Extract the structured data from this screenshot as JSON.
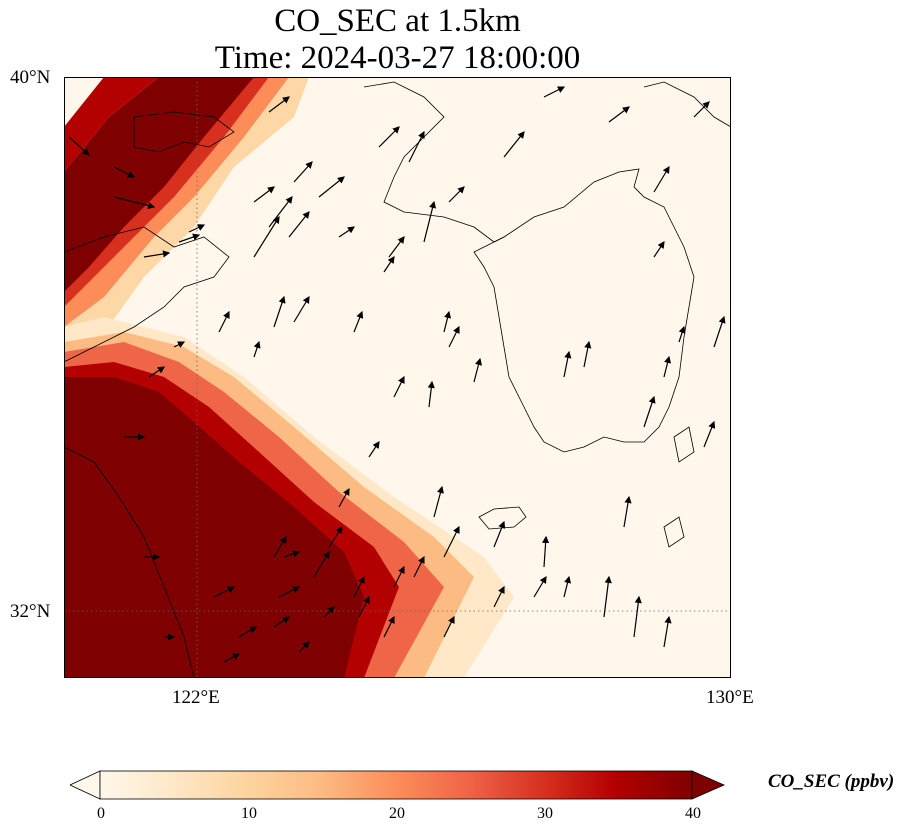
{
  "title": {
    "line1": "CO_SEC at 1.5km",
    "line2": "Time: 2024-03-27 18:00:00"
  },
  "map": {
    "lon_range": [
      120,
      130
    ],
    "lat_range": [
      31,
      40
    ],
    "lat_ticks": [
      {
        "value": 40,
        "label": "40°N"
      },
      {
        "value": 32,
        "label": "32°N"
      }
    ],
    "lon_ticks": [
      {
        "value": 122,
        "label": "122°E"
      },
      {
        "value": 130,
        "label": "130°E"
      }
    ],
    "gridlines": "dotted",
    "field": "CO_SEC",
    "level": "1.5km"
  },
  "colorbar": {
    "label": "CO_SEC (ppbv)",
    "min": 0,
    "max": 40,
    "ticks": [
      "0",
      "10",
      "20",
      "30",
      "40"
    ],
    "extend": "both",
    "colormap": [
      "#fff7ec",
      "#fee8c8",
      "#fdd49e",
      "#fdbb84",
      "#fc8d59",
      "#ef6548",
      "#d7301f",
      "#b30000",
      "#7f0000"
    ]
  },
  "chart_data": {
    "type": "heatmap",
    "title": "CO_SEC at 1.5km\nTime: 2024-03-27 18:00:00",
    "xlabel": "",
    "ylabel": "",
    "xlim": [
      120,
      130
    ],
    "ylim": [
      31,
      40
    ],
    "value_range": [
      0,
      40
    ],
    "units": "ppbv",
    "description_bands": [
      {
        "region": "NW diagonal plume from 120E,37.5N to 123E,40N",
        "value": 40
      },
      {
        "region": "SW plume over 120-124.5E, 31-34.5N",
        "value": 40
      },
      {
        "region": "Korean peninsula and East Sea",
        "value": 0
      }
    ]
  }
}
